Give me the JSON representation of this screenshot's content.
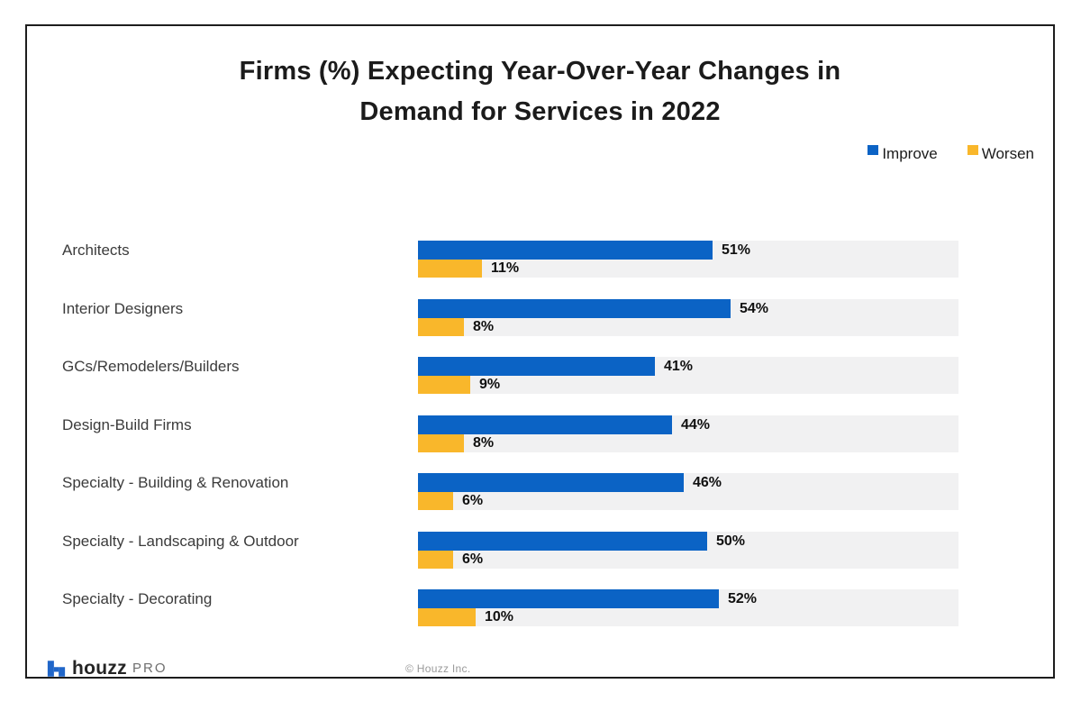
{
  "title": {
    "line1": "Firms (%) Expecting Year-Over-Year Changes in",
    "line2": "Demand for Services in 2022"
  },
  "legend": {
    "items": [
      {
        "label": "Improve",
        "color": "#0B63C5"
      },
      {
        "label": "Worsen",
        "color": "#F9B72B"
      }
    ]
  },
  "footer": {
    "brand": "houzz",
    "brand_suffix": "PRO",
    "logo_icon": "houzz-h-icon",
    "logo_color": "#2066C9",
    "copyright": "© Houzz Inc."
  },
  "colors": {
    "improve": "#0B63C5",
    "worsen": "#F9B72B",
    "track": "#F1F1F2",
    "frame_border": "#1D1D1D",
    "title_text": "#1B1B1B",
    "category_text": "#3B3B3B",
    "value_text": "#101010",
    "footer_gray": "#9A9A9A"
  },
  "chart_data": {
    "type": "bar",
    "orientation": "horizontal",
    "title": "Firms (%) Expecting Year-Over-Year Changes in Demand for Services in 2022",
    "categories": [
      "Architects",
      "Interior Designers",
      "GCs/Remodelers/Builders",
      "Design-Build Firms",
      "Specialty - Building & Renovation",
      "Specialty - Landscaping & Outdoor",
      "Specialty - Decorating"
    ],
    "series": [
      {
        "name": "Improve",
        "color": "#0B63C5",
        "values": [
          51,
          54,
          41,
          44,
          46,
          50,
          52
        ]
      },
      {
        "name": "Worsen",
        "color": "#F9B72B",
        "values": [
          11,
          8,
          9,
          8,
          6,
          6,
          10
        ]
      }
    ],
    "value_suffix": "%",
    "data_labels": true,
    "xlim": [
      0,
      93.5
    ],
    "grid": false,
    "legend_position": "top-right",
    "track_color": "#F1F1F2"
  }
}
